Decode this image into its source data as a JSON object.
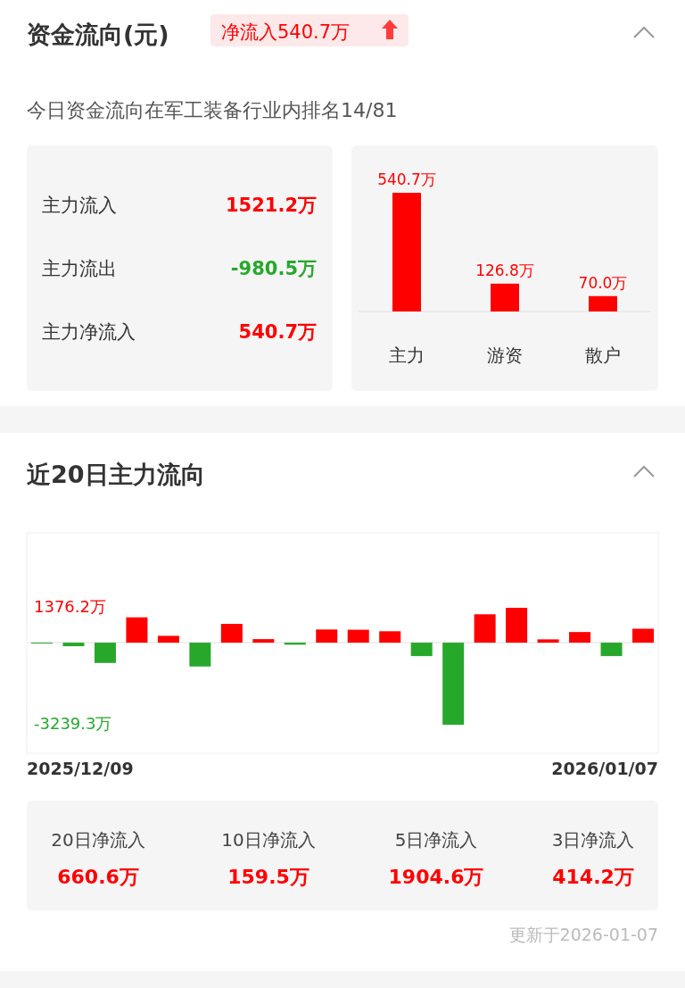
{
  "chart_data": [
    {
      "type": "other",
      "title": "资金流向(元)",
      "subtitle": "净流入540.7万",
      "annotations": [
        "今日资金流向在军工装备行业内排名14/81"
      ],
      "categories": [
        "主力流入",
        "主力流出",
        "主力净流入"
      ],
      "values": [
        1521.2,
        -980.5,
        540.7
      ],
      "value_labels": [
        "1521.2万",
        "-980.5万",
        "540.7万"
      ]
    },
    {
      "type": "bar",
      "categories": [
        "主力",
        "游资",
        "散户"
      ],
      "values": [
        540.7,
        126.8,
        70.0
      ],
      "value_labels": [
        "540.7万",
        "126.8万",
        "70.0万"
      ],
      "color": "#ff0000"
    },
    {
      "type": "bar",
      "title": "近20日主力流向",
      "categories": [
        null,
        null,
        null,
        null,
        null,
        null,
        null,
        null,
        null,
        null,
        null,
        null,
        null,
        null,
        null,
        null,
        null,
        null,
        null,
        null
      ],
      "annotations": [
        "2025/12/09",
        "2026/01/07"
      ],
      "values": [
        -30,
        -140,
        -800,
        1000,
        270,
        -940,
        740,
        140,
        -80,
        520,
        510,
        450,
        -530,
        -3239.3,
        1120,
        1376.2,
        130,
        420,
        -530,
        550
      ],
      "colors": [
        "#27a82b",
        "#27a82b",
        "#27a82b",
        "#ff0000",
        "#ff0000",
        "#27a82b",
        "#ff0000",
        "#ff0000",
        "#27a82b",
        "#ff0000",
        "#ff0000",
        "#ff0000",
        "#27a82b",
        "#27a82b",
        "#ff0000",
        "#ff0000",
        "#ff0000",
        "#ff0000",
        "#27a82b",
        "#ff0000"
      ],
      "ylim": [
        -4330,
        4300
      ],
      "yticks": [
        {
          "value": 1376.2,
          "label": "1376.2万"
        },
        {
          "value": -3239.3,
          "label": "-3239.3万"
        }
      ]
    },
    {
      "type": "other",
      "categories": [
        "20日净流入",
        "10日净流入",
        "5日净流入",
        "3日净流入"
      ],
      "values": [
        660.6,
        159.5,
        1904.6,
        414.2
      ],
      "value_labels": [
        "660.6万",
        "159.5万",
        "1904.6万",
        "414.2万"
      ],
      "annotations": [
        "更新于2026-01-07"
      ]
    }
  ]
}
